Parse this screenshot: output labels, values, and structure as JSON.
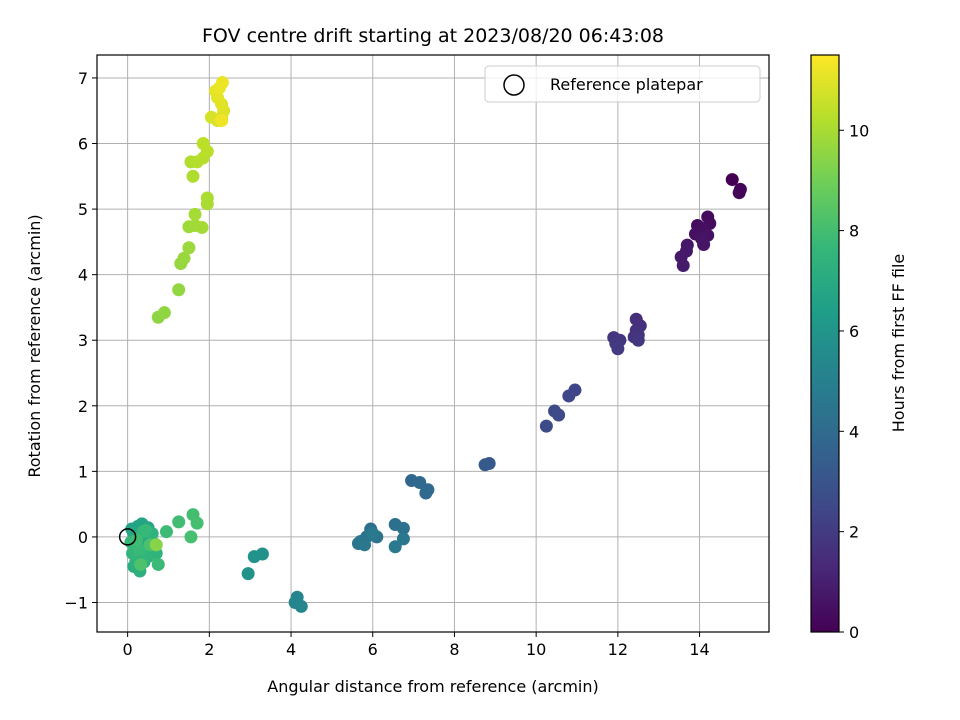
{
  "chart_data": {
    "type": "scatter",
    "title": "FOV centre drift starting at 2023/08/20 06:43:08",
    "xlabel": "Angular distance from reference (arcmin)",
    "ylabel": "Rotation from reference (arcmin)",
    "xlim": [
      -0.75,
      15.7
    ],
    "ylim": [
      -1.45,
      7.35
    ],
    "xticks": [
      0,
      2,
      4,
      6,
      8,
      10,
      12,
      14
    ],
    "yticks": [
      -1,
      0,
      1,
      2,
      3,
      4,
      5,
      6,
      7
    ],
    "xtick_labels": [
      "0",
      "2",
      "4",
      "6",
      "8",
      "10",
      "12",
      "14"
    ],
    "ytick_labels": [
      "−1",
      "0",
      "1",
      "2",
      "3",
      "4",
      "5",
      "6",
      "7"
    ],
    "grid": true,
    "legend": {
      "placement": "top-right",
      "entries": [
        {
          "label": "Reference platepar",
          "marker": "open-circle"
        }
      ]
    },
    "reference_point": {
      "x": 0,
      "y": 0
    },
    "colorbar": {
      "label": "Hours from first FF file",
      "colormap": "viridis",
      "range": [
        0,
        11.5
      ],
      "ticks": [
        0,
        2,
        4,
        6,
        8,
        10
      ],
      "tick_labels": [
        "0",
        "2",
        "4",
        "6",
        "8",
        "10"
      ]
    },
    "colormap_stops": [
      "#440154",
      "#482878",
      "#3e4a89",
      "#31688e",
      "#26828e",
      "#1f9e89",
      "#35b779",
      "#6ece58",
      "#b5de2b",
      "#fde725"
    ],
    "marker_edge_color": "#000000",
    "grid_color": "#b0b0b0",
    "points": [
      {
        "x": 14.8,
        "y": 5.45,
        "h": 0.0
      },
      {
        "x": 15.0,
        "y": 5.3,
        "h": 0.1
      },
      {
        "x": 14.97,
        "y": 5.25,
        "h": 0.15
      },
      {
        "x": 14.2,
        "y": 4.88,
        "h": 0.3
      },
      {
        "x": 14.25,
        "y": 4.78,
        "h": 0.35
      },
      {
        "x": 13.95,
        "y": 4.75,
        "h": 0.4
      },
      {
        "x": 14.1,
        "y": 4.7,
        "h": 0.45
      },
      {
        "x": 13.9,
        "y": 4.62,
        "h": 0.5
      },
      {
        "x": 14.2,
        "y": 4.6,
        "h": 0.55
      },
      {
        "x": 14.05,
        "y": 4.55,
        "h": 0.6
      },
      {
        "x": 14.1,
        "y": 4.46,
        "h": 0.65
      },
      {
        "x": 13.7,
        "y": 4.45,
        "h": 0.7
      },
      {
        "x": 13.68,
        "y": 4.36,
        "h": 0.75
      },
      {
        "x": 13.55,
        "y": 4.27,
        "h": 0.8
      },
      {
        "x": 13.6,
        "y": 4.14,
        "h": 0.85
      },
      {
        "x": 12.45,
        "y": 3.32,
        "h": 1.5
      },
      {
        "x": 12.55,
        "y": 3.22,
        "h": 1.55
      },
      {
        "x": 12.45,
        "y": 3.15,
        "h": 1.6
      },
      {
        "x": 12.5,
        "y": 3.08,
        "h": 1.65
      },
      {
        "x": 12.4,
        "y": 3.05,
        "h": 1.7
      },
      {
        "x": 11.9,
        "y": 3.04,
        "h": 1.75
      },
      {
        "x": 12.05,
        "y": 3.0,
        "h": 1.8
      },
      {
        "x": 12.5,
        "y": 3.0,
        "h": 1.85
      },
      {
        "x": 11.95,
        "y": 2.95,
        "h": 1.9
      },
      {
        "x": 12.0,
        "y": 2.87,
        "h": 1.95
      },
      {
        "x": 10.95,
        "y": 2.24,
        "h": 2.4
      },
      {
        "x": 10.8,
        "y": 2.15,
        "h": 2.45
      },
      {
        "x": 10.45,
        "y": 1.92,
        "h": 2.5
      },
      {
        "x": 10.55,
        "y": 1.86,
        "h": 2.55
      },
      {
        "x": 10.25,
        "y": 1.69,
        "h": 2.6
      },
      {
        "x": 8.85,
        "y": 1.12,
        "h": 3.2
      },
      {
        "x": 8.75,
        "y": 1.1,
        "h": 3.25
      },
      {
        "x": 6.95,
        "y": 0.86,
        "h": 3.8
      },
      {
        "x": 7.15,
        "y": 0.83,
        "h": 3.85
      },
      {
        "x": 7.35,
        "y": 0.72,
        "h": 3.9
      },
      {
        "x": 7.3,
        "y": 0.67,
        "h": 3.95
      },
      {
        "x": 5.95,
        "y": 0.12,
        "h": 4.2
      },
      {
        "x": 6.55,
        "y": 0.19,
        "h": 4.25
      },
      {
        "x": 6.75,
        "y": 0.13,
        "h": 4.3
      },
      {
        "x": 6.1,
        "y": 0.0,
        "h": 4.35
      },
      {
        "x": 5.85,
        "y": 0.0,
        "h": 4.4
      },
      {
        "x": 5.7,
        "y": -0.07,
        "h": 4.45
      },
      {
        "x": 5.65,
        "y": -0.1,
        "h": 4.5
      },
      {
        "x": 5.8,
        "y": -0.12,
        "h": 4.55
      },
      {
        "x": 6.75,
        "y": -0.03,
        "h": 4.6
      },
      {
        "x": 6.55,
        "y": -0.15,
        "h": 4.65
      },
      {
        "x": 6.0,
        "y": 0.05,
        "h": 4.7
      },
      {
        "x": 4.15,
        "y": -0.92,
        "h": 5.2
      },
      {
        "x": 4.1,
        "y": -1.0,
        "h": 5.25
      },
      {
        "x": 4.25,
        "y": -1.06,
        "h": 5.3
      },
      {
        "x": 3.3,
        "y": -0.26,
        "h": 5.8
      },
      {
        "x": 3.1,
        "y": -0.3,
        "h": 5.85
      },
      {
        "x": 2.95,
        "y": -0.56,
        "h": 5.9
      },
      {
        "x": 0.1,
        "y": 0.12,
        "h": 6.6
      },
      {
        "x": 0.25,
        "y": 0.16,
        "h": 6.65
      },
      {
        "x": 0.35,
        "y": 0.2,
        "h": 6.7
      },
      {
        "x": 0.5,
        "y": 0.14,
        "h": 6.75
      },
      {
        "x": 0.15,
        "y": 0.05,
        "h": 6.8
      },
      {
        "x": 0.3,
        "y": 0.0,
        "h": 6.85
      },
      {
        "x": 0.45,
        "y": -0.05,
        "h": 6.9
      },
      {
        "x": 0.2,
        "y": -0.12,
        "h": 6.95
      },
      {
        "x": 0.35,
        "y": -0.18,
        "h": 7.0
      },
      {
        "x": 0.55,
        "y": -0.2,
        "h": 7.05
      },
      {
        "x": 0.25,
        "y": -0.3,
        "h": 7.1
      },
      {
        "x": 0.4,
        "y": -0.38,
        "h": 7.15
      },
      {
        "x": 0.15,
        "y": -0.45,
        "h": 7.2
      },
      {
        "x": 0.3,
        "y": -0.52,
        "h": 7.25
      },
      {
        "x": 0.2,
        "y": -0.38,
        "h": 7.3
      },
      {
        "x": 0.6,
        "y": 0.05,
        "h": 7.35
      },
      {
        "x": 0.65,
        "y": -0.1,
        "h": 7.4
      },
      {
        "x": 0.7,
        "y": -0.25,
        "h": 7.45
      },
      {
        "x": 0.5,
        "y": -0.3,
        "h": 7.5
      },
      {
        "x": 0.12,
        "y": -0.25,
        "h": 7.55
      },
      {
        "x": 0.38,
        "y": 0.08,
        "h": 7.6
      },
      {
        "x": 0.08,
        "y": -0.08,
        "h": 7.65
      },
      {
        "x": 0.45,
        "y": 0.1,
        "h": 7.7
      },
      {
        "x": 0.28,
        "y": -0.2,
        "h": 7.75
      },
      {
        "x": 0.75,
        "y": -0.42,
        "h": 7.8
      },
      {
        "x": 0.95,
        "y": 0.08,
        "h": 7.85
      },
      {
        "x": 0.22,
        "y": -0.05,
        "h": 7.9
      },
      {
        "x": 1.25,
        "y": 0.23,
        "h": 7.95
      },
      {
        "x": 1.6,
        "y": 0.34,
        "h": 8.0
      },
      {
        "x": 1.7,
        "y": 0.21,
        "h": 8.05
      },
      {
        "x": 1.55,
        "y": 0.0,
        "h": 8.1
      },
      {
        "x": 0.55,
        "y": -0.12,
        "h": 8.15
      },
      {
        "x": 0.32,
        "y": -0.42,
        "h": 8.2
      },
      {
        "x": 0.75,
        "y": 3.35,
        "h": 9.5
      },
      {
        "x": 0.9,
        "y": 3.42,
        "h": 9.55
      },
      {
        "x": 1.25,
        "y": 3.77,
        "h": 9.6
      },
      {
        "x": 1.3,
        "y": 4.17,
        "h": 9.65
      },
      {
        "x": 1.38,
        "y": 4.25,
        "h": 9.7
      },
      {
        "x": 1.5,
        "y": 4.41,
        "h": 9.75
      },
      {
        "x": 1.5,
        "y": 4.73,
        "h": 9.8
      },
      {
        "x": 1.65,
        "y": 4.75,
        "h": 9.85
      },
      {
        "x": 1.82,
        "y": 4.72,
        "h": 9.9
      },
      {
        "x": 1.65,
        "y": 4.92,
        "h": 9.95
      },
      {
        "x": 1.95,
        "y": 5.08,
        "h": 10.0
      },
      {
        "x": 1.95,
        "y": 5.17,
        "h": 10.05
      },
      {
        "x": 1.6,
        "y": 5.5,
        "h": 10.1
      },
      {
        "x": 1.55,
        "y": 5.72,
        "h": 10.15
      },
      {
        "x": 1.7,
        "y": 5.72,
        "h": 10.2
      },
      {
        "x": 1.85,
        "y": 5.78,
        "h": 10.25
      },
      {
        "x": 1.95,
        "y": 5.88,
        "h": 10.3
      },
      {
        "x": 1.85,
        "y": 6.0,
        "h": 10.35
      },
      {
        "x": 2.05,
        "y": 6.4,
        "h": 10.8
      },
      {
        "x": 2.2,
        "y": 6.35,
        "h": 10.85
      },
      {
        "x": 2.3,
        "y": 6.4,
        "h": 10.9
      },
      {
        "x": 2.35,
        "y": 6.5,
        "h": 10.95
      },
      {
        "x": 2.3,
        "y": 6.6,
        "h": 11.0
      },
      {
        "x": 2.2,
        "y": 6.7,
        "h": 11.05
      },
      {
        "x": 2.15,
        "y": 6.8,
        "h": 11.1
      },
      {
        "x": 2.25,
        "y": 6.85,
        "h": 11.15
      },
      {
        "x": 2.32,
        "y": 6.93,
        "h": 11.2
      },
      {
        "x": 2.3,
        "y": 6.35,
        "h": 11.25
      },
      {
        "x": 0.7,
        "y": -0.12,
        "h": 9.4
      }
    ]
  }
}
